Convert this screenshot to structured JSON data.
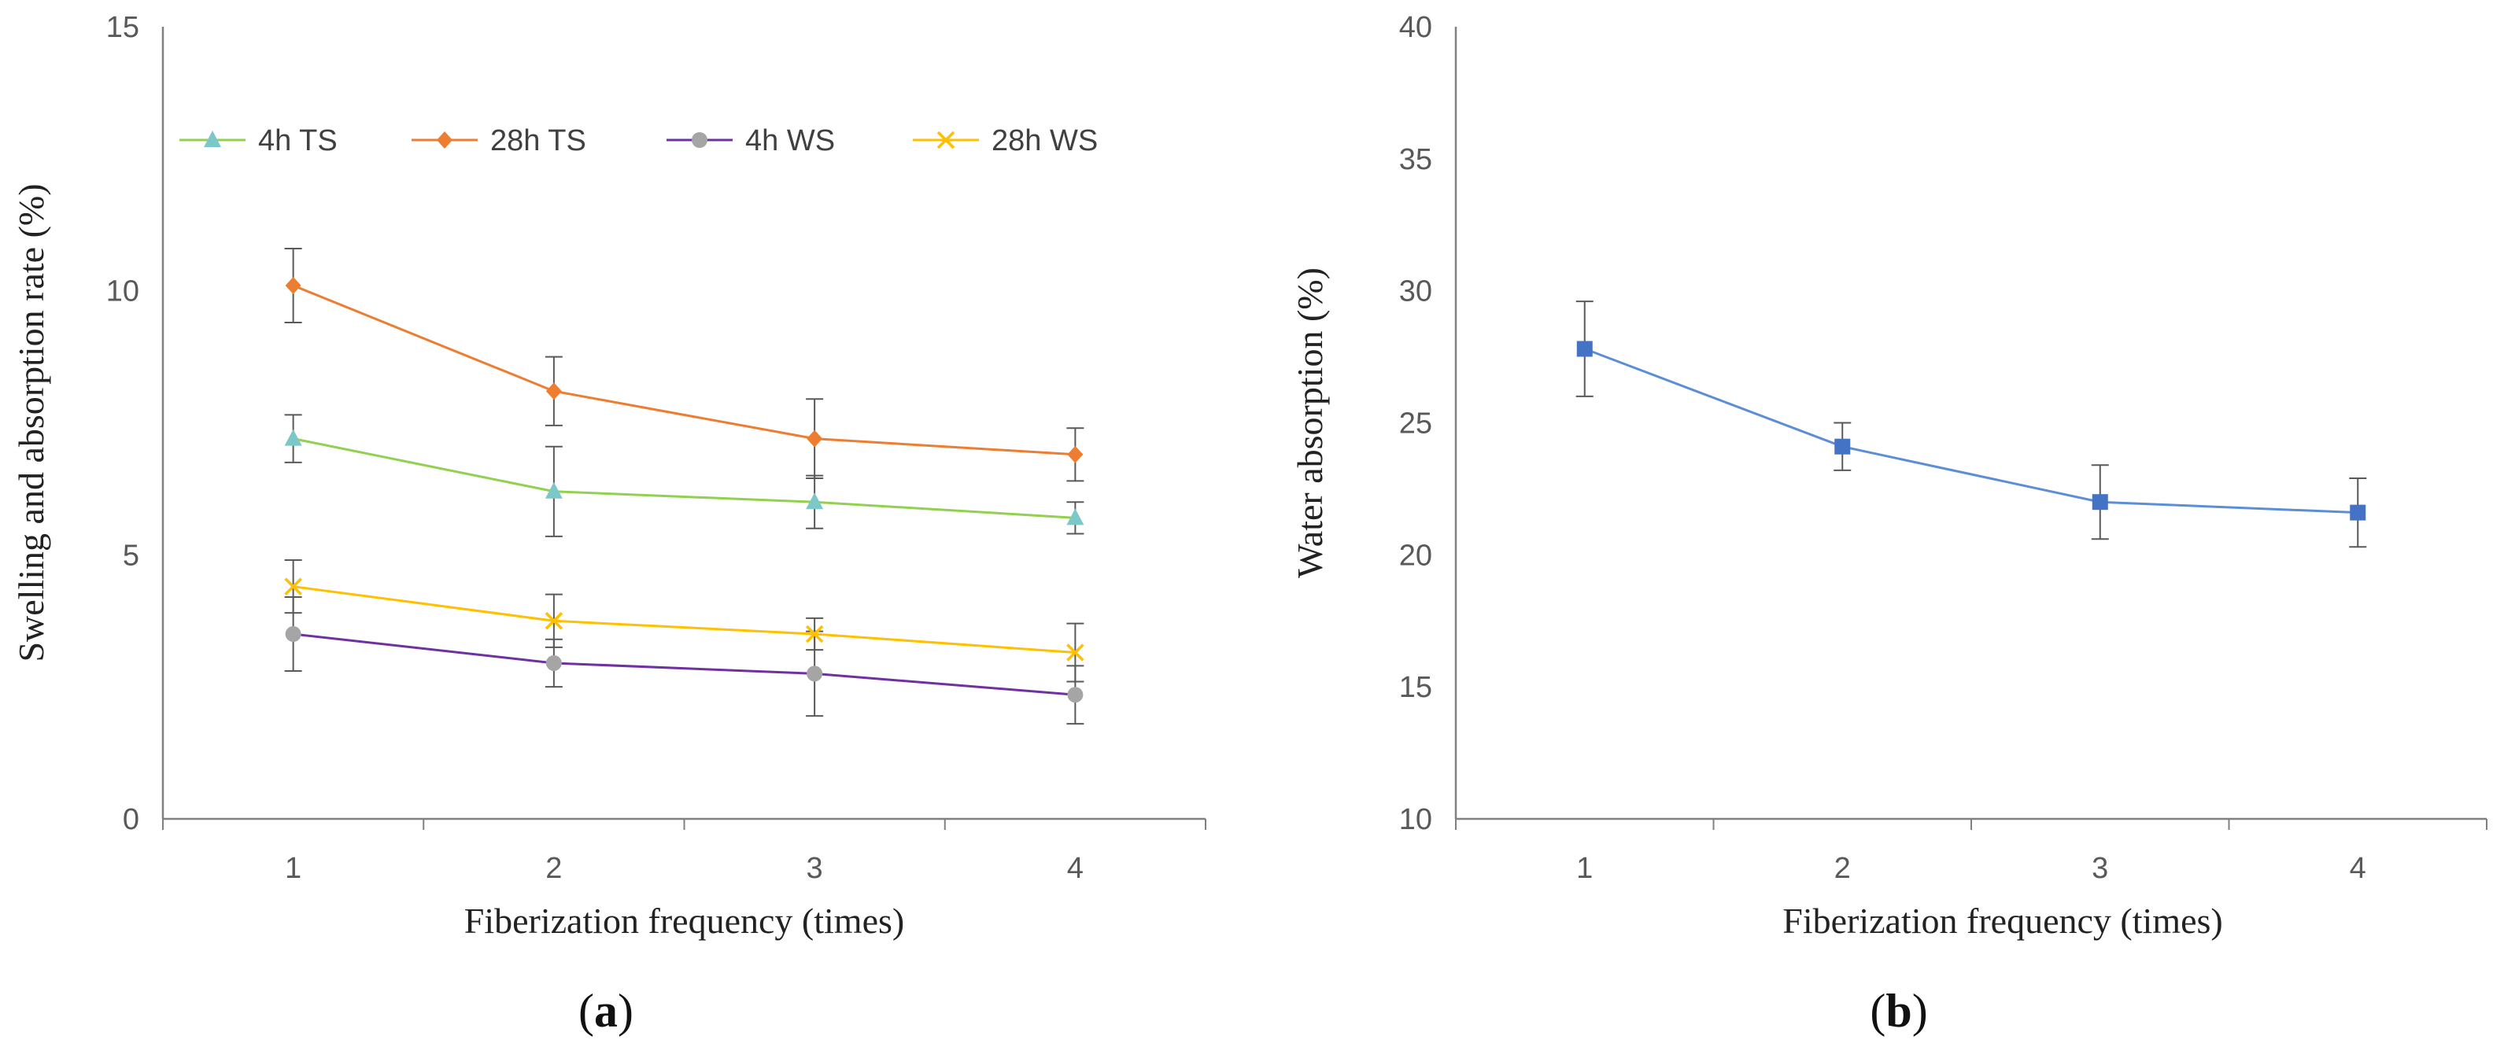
{
  "chart_data": [
    {
      "type": "line",
      "panel_label": "a",
      "xlabel": "Fiberization frequency (times)",
      "ylabel": "Swelling and absorption rate  (%)",
      "categories": [
        "1",
        "2",
        "3",
        "4"
      ],
      "ylim": [
        0,
        15
      ],
      "yticks": [
        "0",
        "5",
        "10",
        "15"
      ],
      "grid": false,
      "legend_position": "top",
      "series": [
        {
          "name": "4h TS",
          "color": "#92d050",
          "marker": "triangle",
          "marker_color": "#7cc8c8",
          "values": [
            7.2,
            6.2,
            6.0,
            5.7
          ],
          "errors": [
            0.45,
            0.85,
            0.5,
            0.3
          ]
        },
        {
          "name": "28h TS",
          "color": "#ed7d31",
          "marker": "diamond",
          "marker_color": "#ed7d31",
          "values": [
            10.1,
            8.1,
            7.2,
            6.9
          ],
          "errors": [
            0.7,
            0.65,
            0.75,
            0.5
          ]
        },
        {
          "name": "4h WS",
          "color": "#7030a0",
          "marker": "circle",
          "marker_color": "#a5a5a5",
          "values": [
            3.5,
            2.95,
            2.75,
            2.35
          ],
          "errors": [
            0.7,
            0.45,
            0.8,
            0.55
          ]
        },
        {
          "name": "28h WS",
          "color": "#ffc000",
          "marker": "x",
          "marker_color": "#ffc000",
          "values": [
            4.4,
            3.75,
            3.5,
            3.15
          ],
          "errors": [
            0.5,
            0.5,
            0.3,
            0.55
          ]
        }
      ]
    },
    {
      "type": "line",
      "panel_label": "b",
      "xlabel": "Fiberization frequency (times)",
      "ylabel": "Water absorption (%)",
      "categories": [
        "1",
        "2",
        "3",
        "4"
      ],
      "ylim": [
        10,
        40
      ],
      "yticks": [
        "10",
        "15",
        "20",
        "25",
        "30",
        "35",
        "40"
      ],
      "grid": false,
      "series": [
        {
          "color": "#5b8ed6",
          "marker": "square",
          "marker_color": "#4472c4",
          "values": [
            27.8,
            24.1,
            22.0,
            21.6
          ],
          "errors": [
            1.8,
            0.9,
            1.4,
            1.3
          ]
        }
      ]
    }
  ],
  "panel_labels": {
    "a": "a",
    "b": "b"
  }
}
